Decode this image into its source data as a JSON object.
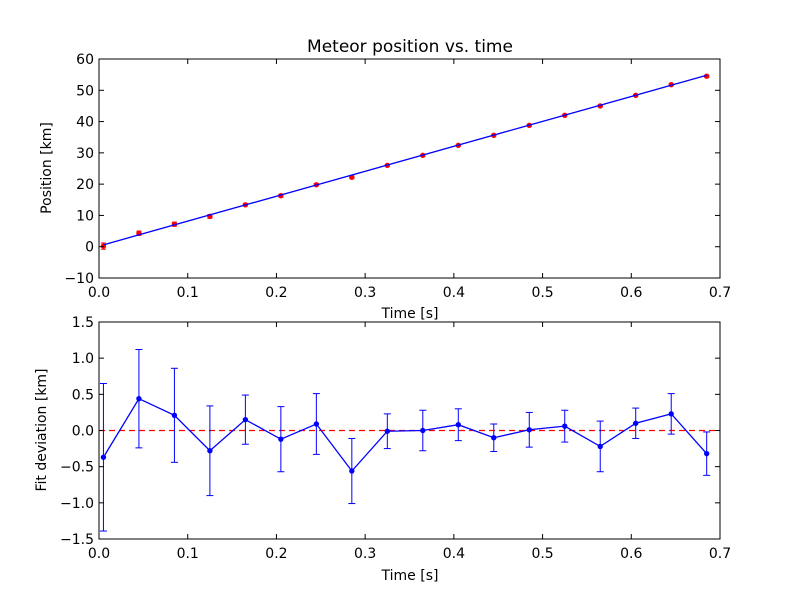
{
  "chart_data": [
    {
      "type": "line",
      "title": "Meteor position vs. time",
      "xlabel": "Time [s]",
      "ylabel": "Position [km]",
      "xlim": [
        0.0,
        0.7
      ],
      "ylim": [
        -10,
        60
      ],
      "xticks": [
        "0.0",
        "0.1",
        "0.2",
        "0.3",
        "0.4",
        "0.5",
        "0.6",
        "0.7"
      ],
      "yticks": [
        "−10",
        "0",
        "10",
        "20",
        "30",
        "40",
        "50",
        "60"
      ],
      "xtick_values": [
        0.0,
        0.1,
        0.2,
        0.3,
        0.4,
        0.5,
        0.6,
        0.7
      ],
      "ytick_values": [
        -10,
        0,
        10,
        20,
        30,
        40,
        50,
        60
      ],
      "grid": false,
      "series": [
        {
          "kind": "points-with-errorbars",
          "color": "#ff0000",
          "x": [
            0.005,
            0.045,
            0.085,
            0.125,
            0.165,
            0.205,
            0.245,
            0.285,
            0.325,
            0.365,
            0.405,
            0.445,
            0.485,
            0.525,
            0.565,
            0.605,
            0.645,
            0.685
          ],
          "y": [
            0.2,
            4.3,
            7.2,
            9.7,
            13.4,
            16.3,
            19.8,
            22.2,
            26.0,
            29.2,
            32.4,
            35.6,
            38.8,
            42.0,
            45.0,
            48.4,
            51.8,
            54.5
          ],
          "yerr": [
            1.0,
            0.7,
            0.65,
            0.6,
            0.35,
            0.45,
            0.4,
            0.45,
            0.25,
            0.3,
            0.2,
            0.2,
            0.25,
            0.2,
            0.35,
            0.2,
            0.3,
            0.3
          ]
        },
        {
          "kind": "fit-line",
          "color": "#0000ff",
          "x": [
            0.005,
            0.685
          ],
          "y": [
            0.6,
            54.8
          ]
        }
      ]
    },
    {
      "type": "line",
      "title": "",
      "xlabel": "Time [s]",
      "ylabel": "Fit deviation [km]",
      "xlim": [
        0.0,
        0.7
      ],
      "ylim": [
        -1.5,
        1.5
      ],
      "xticks": [
        "0.0",
        "0.1",
        "0.2",
        "0.3",
        "0.4",
        "0.5",
        "0.6",
        "0.7"
      ],
      "yticks": [
        "−1.5",
        "−1.0",
        "−0.5",
        "0.0",
        "0.5",
        "1.0",
        "1.5"
      ],
      "xtick_values": [
        0.0,
        0.1,
        0.2,
        0.3,
        0.4,
        0.5,
        0.6,
        0.7
      ],
      "ytick_values": [
        -1.5,
        -1.0,
        -0.5,
        0.0,
        0.5,
        1.0,
        1.5
      ],
      "grid": false,
      "reference_line": {
        "y": 0.0,
        "color": "#ff0000",
        "style": "dashed"
      },
      "series": [
        {
          "kind": "line-with-errorbars",
          "color": "#0000ff",
          "x": [
            0.005,
            0.045,
            0.085,
            0.125,
            0.165,
            0.205,
            0.245,
            0.285,
            0.325,
            0.365,
            0.405,
            0.445,
            0.485,
            0.525,
            0.565,
            0.605,
            0.645,
            0.685
          ],
          "y": [
            -0.37,
            0.44,
            0.21,
            -0.28,
            0.15,
            -0.12,
            0.09,
            -0.56,
            -0.01,
            0.0,
            0.08,
            -0.1,
            0.01,
            0.06,
            -0.22,
            0.1,
            0.23,
            -0.32
          ],
          "yerr": [
            1.02,
            0.68,
            0.65,
            0.62,
            0.34,
            0.45,
            0.42,
            0.45,
            0.24,
            0.28,
            0.22,
            0.19,
            0.24,
            0.22,
            0.35,
            0.21,
            0.28,
            0.3
          ]
        }
      ]
    }
  ]
}
